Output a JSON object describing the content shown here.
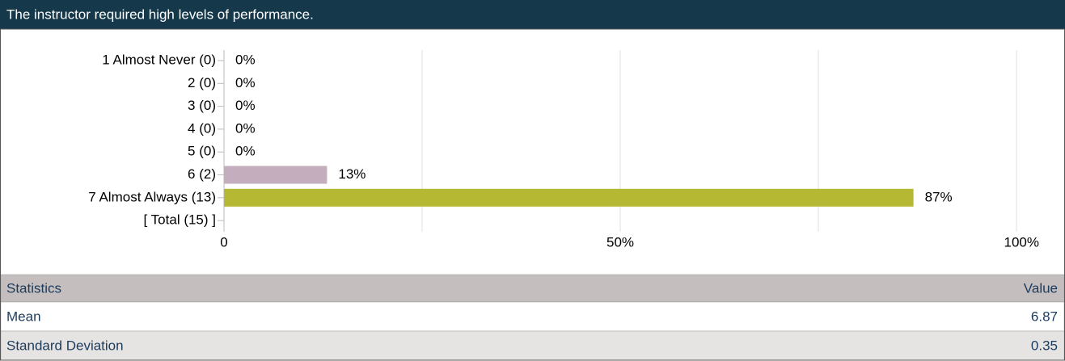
{
  "chart_data": {
    "type": "bar",
    "orientation": "horizontal",
    "title": "The instructor required high levels of performance.",
    "categories": [
      "1 Almost Never (0)",
      "2 (0)",
      "3 (0)",
      "4 (0)",
      "5 (0)",
      "6 (2)",
      "7 Almost Always (13)",
      "[ Total (15) ]"
    ],
    "values": [
      0,
      0,
      0,
      0,
      0,
      13,
      87,
      null
    ],
    "value_labels": [
      "0%",
      "0%",
      "0%",
      "0%",
      "0%",
      "13%",
      "87%",
      null
    ],
    "colors": [
      null,
      null,
      null,
      null,
      null,
      "#c4aebd",
      "#b5b832",
      null
    ],
    "xlim": [
      0,
      100
    ],
    "xticks": [
      0,
      {
        "value": 50,
        "label": "50%"
      },
      {
        "value": 100,
        "label": "100%"
      }
    ],
    "minor_xticks": [
      25,
      75
    ],
    "grid": true
  },
  "statistics": {
    "header": [
      "Statistics",
      "Value"
    ],
    "rows": [
      [
        "Mean",
        "6.87"
      ],
      [
        "Standard Deviation",
        "0.35"
      ]
    ]
  }
}
